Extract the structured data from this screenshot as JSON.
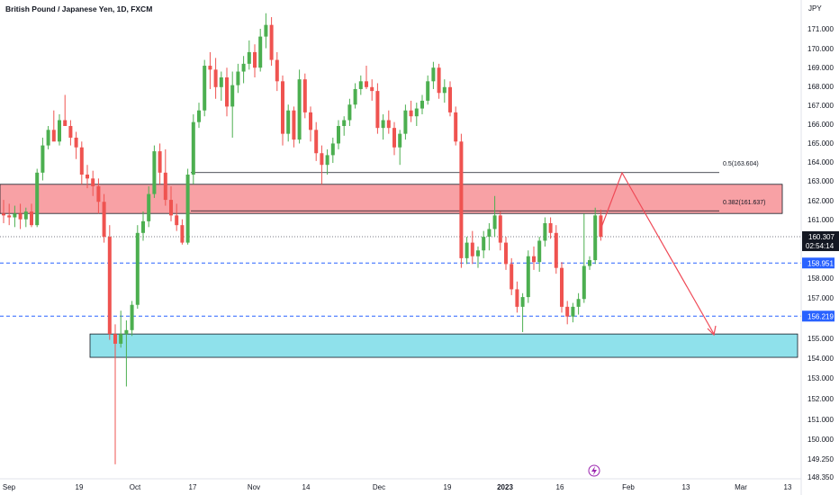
{
  "header": {
    "symbol_title": "British Pound / Japanese Yen, 1D, FXCM",
    "currency": "JPY"
  },
  "colors": {
    "up_candle": "#4caf50",
    "down_candle": "#ef5350",
    "resistance_zone": "#f8a1a5",
    "support_zone": "#8fe1eb",
    "dashed_line": "#2962ff",
    "arrow": "#ef4a57",
    "current_price_badge": "#131722",
    "level_badge": "#2962ff",
    "lightning_icon": "#9c27b0"
  },
  "price_scale": {
    "ticks": [
      "171.000",
      "170.000",
      "169.000",
      "168.000",
      "167.000",
      "166.000",
      "165.000",
      "164.000",
      "163.000",
      "162.000",
      "161.000",
      "158.000",
      "157.000",
      "155.000",
      "154.000",
      "153.000",
      "152.000",
      "151.000",
      "150.000",
      "149.250",
      "148.350"
    ],
    "current_price": "160.307",
    "countdown": "02:54:14",
    "level_1": "158.951",
    "level_2": "156.219"
  },
  "time_axis": {
    "labels": [
      "Sep",
      "19",
      "Oct",
      "17",
      "Nov",
      "14",
      "Dec",
      "19",
      "2023",
      "16",
      "Feb",
      "13",
      "Mar",
      "13"
    ]
  },
  "annotations": {
    "fib_050": "0.5(163.604)",
    "fib_0382": "0.382(161.637)",
    "lightning_icon": "lightning-icon"
  },
  "chart_data": {
    "type": "candlestick",
    "title": "British Pound / Japanese Yen, 1D, FXCM",
    "y_unit": "JPY",
    "ylim": [
      148.35,
      172.0
    ],
    "grid": false,
    "zones": [
      {
        "name": "resistance",
        "from": 161.5,
        "to": 163.0
      },
      {
        "name": "support",
        "from": 154.1,
        "to": 155.3
      }
    ],
    "horizontal_levels": [
      {
        "label": "0.5(163.604)",
        "value": 163.604
      },
      {
        "label": "0.382(161.637)",
        "value": 161.637
      },
      {
        "label": "158.951",
        "value": 158.951,
        "style": "dashed"
      },
      {
        "label": "156.219",
        "value": 156.219,
        "style": "dashed"
      },
      {
        "label": "160.307",
        "value": 160.307,
        "style": "dotted"
      }
    ],
    "projection": [
      {
        "date": "2023-01-24",
        "price": 160.3
      },
      {
        "date": "2023-01-28",
        "price": 163.4
      },
      {
        "date": "2023-02-23",
        "price": 155.0
      }
    ],
    "candles": [
      {
        "o": 161.5,
        "h": 162.2,
        "l": 161.0,
        "c": 161.4
      },
      {
        "o": 161.4,
        "h": 162.0,
        "l": 160.9,
        "c": 161.3
      },
      {
        "o": 161.3,
        "h": 161.9,
        "l": 160.8,
        "c": 161.5
      },
      {
        "o": 161.5,
        "h": 162.0,
        "l": 160.7,
        "c": 161.2
      },
      {
        "o": 161.2,
        "h": 161.8,
        "l": 160.8,
        "c": 161.6
      },
      {
        "o": 161.6,
        "h": 162.0,
        "l": 160.8,
        "c": 160.9
      },
      {
        "o": 160.9,
        "h": 163.8,
        "l": 160.8,
        "c": 163.6
      },
      {
        "o": 163.6,
        "h": 165.4,
        "l": 163.2,
        "c": 165.0
      },
      {
        "o": 165.0,
        "h": 166.0,
        "l": 164.8,
        "c": 165.8
      },
      {
        "o": 165.8,
        "h": 166.8,
        "l": 165.4,
        "c": 165.2
      },
      {
        "o": 165.2,
        "h": 166.6,
        "l": 165.0,
        "c": 166.3
      },
      {
        "o": 166.3,
        "h": 167.6,
        "l": 166.0,
        "c": 166.0
      },
      {
        "o": 166.0,
        "h": 166.3,
        "l": 165.0,
        "c": 165.4
      },
      {
        "o": 165.4,
        "h": 165.7,
        "l": 164.3,
        "c": 164.9
      },
      {
        "o": 164.9,
        "h": 165.2,
        "l": 163.0,
        "c": 163.5
      },
      {
        "o": 163.5,
        "h": 164.0,
        "l": 162.8,
        "c": 163.3
      },
      {
        "o": 163.3,
        "h": 163.7,
        "l": 162.4,
        "c": 162.9
      },
      {
        "o": 162.9,
        "h": 163.3,
        "l": 161.5,
        "c": 162.1
      },
      {
        "o": 162.1,
        "h": 162.5,
        "l": 160.0,
        "c": 160.3
      },
      {
        "o": 160.3,
        "h": 160.9,
        "l": 155.0,
        "c": 155.3
      },
      {
        "o": 155.3,
        "h": 155.8,
        "l": 148.6,
        "c": 154.8
      },
      {
        "o": 154.8,
        "h": 156.5,
        "l": 154.6,
        "c": 155.3
      },
      {
        "o": 155.3,
        "h": 156.0,
        "l": 152.6,
        "c": 155.5
      },
      {
        "o": 155.5,
        "h": 157.0,
        "l": 155.2,
        "c": 156.8
      },
      {
        "o": 156.8,
        "h": 160.9,
        "l": 156.6,
        "c": 160.5
      },
      {
        "o": 160.5,
        "h": 161.6,
        "l": 160.1,
        "c": 161.1
      },
      {
        "o": 161.1,
        "h": 162.9,
        "l": 160.8,
        "c": 162.5
      },
      {
        "o": 162.5,
        "h": 165.0,
        "l": 162.3,
        "c": 164.7
      },
      {
        "o": 164.7,
        "h": 165.1,
        "l": 163.0,
        "c": 163.6
      },
      {
        "o": 163.6,
        "h": 164.8,
        "l": 161.9,
        "c": 162.2
      },
      {
        "o": 162.2,
        "h": 162.9,
        "l": 161.1,
        "c": 161.4
      },
      {
        "o": 161.4,
        "h": 162.0,
        "l": 160.6,
        "c": 160.9
      },
      {
        "o": 160.9,
        "h": 161.2,
        "l": 159.9,
        "c": 160.0
      },
      {
        "o": 160.0,
        "h": 163.8,
        "l": 159.9,
        "c": 163.5
      },
      {
        "o": 163.5,
        "h": 166.6,
        "l": 163.0,
        "c": 166.2
      },
      {
        "o": 166.2,
        "h": 167.2,
        "l": 165.9,
        "c": 166.8
      },
      {
        "o": 166.8,
        "h": 169.4,
        "l": 166.5,
        "c": 169.1
      },
      {
        "o": 169.1,
        "h": 169.8,
        "l": 167.9,
        "c": 168.9
      },
      {
        "o": 168.9,
        "h": 169.5,
        "l": 167.4,
        "c": 168.0
      },
      {
        "o": 168.0,
        "h": 168.8,
        "l": 167.3,
        "c": 168.5
      },
      {
        "o": 168.5,
        "h": 169.0,
        "l": 166.5,
        "c": 167.0
      },
      {
        "o": 167.0,
        "h": 168.8,
        "l": 165.4,
        "c": 168.1
      },
      {
        "o": 168.1,
        "h": 169.2,
        "l": 167.7,
        "c": 168.8
      },
      {
        "o": 168.8,
        "h": 169.6,
        "l": 168.2,
        "c": 169.2
      },
      {
        "o": 169.2,
        "h": 170.4,
        "l": 168.9,
        "c": 169.8
      },
      {
        "o": 169.8,
        "h": 170.2,
        "l": 168.5,
        "c": 169.0
      },
      {
        "o": 169.0,
        "h": 171.0,
        "l": 168.8,
        "c": 170.6
      },
      {
        "o": 170.6,
        "h": 171.8,
        "l": 170.0,
        "c": 171.2
      },
      {
        "o": 171.2,
        "h": 171.6,
        "l": 169.1,
        "c": 169.4
      },
      {
        "o": 169.4,
        "h": 169.8,
        "l": 167.8,
        "c": 168.3
      },
      {
        "o": 168.3,
        "h": 168.6,
        "l": 165.0,
        "c": 165.6
      },
      {
        "o": 165.6,
        "h": 167.1,
        "l": 165.2,
        "c": 166.8
      },
      {
        "o": 166.8,
        "h": 167.0,
        "l": 164.9,
        "c": 165.3
      },
      {
        "o": 165.3,
        "h": 168.9,
        "l": 165.1,
        "c": 168.4
      },
      {
        "o": 168.4,
        "h": 168.7,
        "l": 166.4,
        "c": 166.7
      },
      {
        "o": 166.7,
        "h": 167.0,
        "l": 165.2,
        "c": 165.8
      },
      {
        "o": 165.8,
        "h": 166.2,
        "l": 164.2,
        "c": 164.6
      },
      {
        "o": 164.6,
        "h": 165.0,
        "l": 163.0,
        "c": 164.0
      },
      {
        "o": 164.0,
        "h": 164.8,
        "l": 163.5,
        "c": 164.5
      },
      {
        "o": 164.5,
        "h": 165.4,
        "l": 164.1,
        "c": 165.1
      },
      {
        "o": 165.1,
        "h": 166.3,
        "l": 164.8,
        "c": 166.0
      },
      {
        "o": 166.0,
        "h": 166.5,
        "l": 165.5,
        "c": 166.3
      },
      {
        "o": 166.3,
        "h": 167.4,
        "l": 166.0,
        "c": 167.1
      },
      {
        "o": 167.1,
        "h": 168.2,
        "l": 166.9,
        "c": 167.9
      },
      {
        "o": 167.9,
        "h": 168.6,
        "l": 167.6,
        "c": 168.3
      },
      {
        "o": 168.3,
        "h": 169.1,
        "l": 167.9,
        "c": 168.0
      },
      {
        "o": 168.0,
        "h": 168.4,
        "l": 167.3,
        "c": 167.8
      },
      {
        "o": 167.8,
        "h": 168.2,
        "l": 165.6,
        "c": 165.9
      },
      {
        "o": 165.9,
        "h": 166.6,
        "l": 165.3,
        "c": 166.3
      },
      {
        "o": 166.3,
        "h": 166.8,
        "l": 165.6,
        "c": 165.9
      },
      {
        "o": 165.9,
        "h": 166.2,
        "l": 164.5,
        "c": 164.9
      },
      {
        "o": 164.9,
        "h": 165.8,
        "l": 164.0,
        "c": 165.6
      },
      {
        "o": 165.6,
        "h": 167.1,
        "l": 165.3,
        "c": 166.8
      },
      {
        "o": 166.8,
        "h": 167.3,
        "l": 166.2,
        "c": 166.5
      },
      {
        "o": 166.5,
        "h": 167.2,
        "l": 166.0,
        "c": 166.9
      },
      {
        "o": 166.9,
        "h": 167.6,
        "l": 166.6,
        "c": 167.3
      },
      {
        "o": 167.3,
        "h": 168.6,
        "l": 167.1,
        "c": 168.3
      },
      {
        "o": 168.3,
        "h": 169.3,
        "l": 167.9,
        "c": 169.0
      },
      {
        "o": 169.0,
        "h": 169.2,
        "l": 167.4,
        "c": 167.7
      },
      {
        "o": 167.7,
        "h": 168.4,
        "l": 167.2,
        "c": 168.0
      },
      {
        "o": 168.0,
        "h": 168.3,
        "l": 166.5,
        "c": 166.7
      },
      {
        "o": 166.7,
        "h": 167.0,
        "l": 165.0,
        "c": 165.2
      },
      {
        "o": 165.2,
        "h": 165.6,
        "l": 158.7,
        "c": 159.2
      },
      {
        "o": 159.2,
        "h": 160.3,
        "l": 158.9,
        "c": 160.0
      },
      {
        "o": 160.0,
        "h": 160.6,
        "l": 158.9,
        "c": 159.3
      },
      {
        "o": 159.3,
        "h": 159.8,
        "l": 158.7,
        "c": 159.6
      },
      {
        "o": 159.6,
        "h": 160.6,
        "l": 159.2,
        "c": 160.3
      },
      {
        "o": 160.3,
        "h": 161.0,
        "l": 159.6,
        "c": 160.7
      },
      {
        "o": 160.7,
        "h": 162.4,
        "l": 160.3,
        "c": 161.4
      },
      {
        "o": 161.4,
        "h": 161.6,
        "l": 159.6,
        "c": 160.0
      },
      {
        "o": 160.0,
        "h": 160.3,
        "l": 158.6,
        "c": 158.9
      },
      {
        "o": 158.9,
        "h": 159.2,
        "l": 157.3,
        "c": 157.6
      },
      {
        "o": 157.6,
        "h": 158.0,
        "l": 156.4,
        "c": 156.7
      },
      {
        "o": 156.7,
        "h": 157.4,
        "l": 155.4,
        "c": 157.2
      },
      {
        "o": 157.2,
        "h": 159.6,
        "l": 156.9,
        "c": 159.3
      },
      {
        "o": 159.3,
        "h": 159.8,
        "l": 158.6,
        "c": 159.0
      },
      {
        "o": 159.0,
        "h": 160.3,
        "l": 158.5,
        "c": 160.1
      },
      {
        "o": 160.1,
        "h": 161.3,
        "l": 159.8,
        "c": 161.0
      },
      {
        "o": 161.0,
        "h": 161.3,
        "l": 160.2,
        "c": 160.5
      },
      {
        "o": 160.5,
        "h": 160.9,
        "l": 158.4,
        "c": 158.7
      },
      {
        "o": 158.7,
        "h": 159.0,
        "l": 156.4,
        "c": 156.7
      },
      {
        "o": 156.7,
        "h": 157.0,
        "l": 155.8,
        "c": 156.2
      },
      {
        "o": 156.2,
        "h": 156.9,
        "l": 155.9,
        "c": 156.7
      },
      {
        "o": 156.7,
        "h": 157.4,
        "l": 156.3,
        "c": 157.1
      },
      {
        "o": 157.1,
        "h": 161.5,
        "l": 156.9,
        "c": 158.8
      },
      {
        "o": 158.8,
        "h": 159.3,
        "l": 158.6,
        "c": 159.1
      },
      {
        "o": 159.1,
        "h": 161.8,
        "l": 158.9,
        "c": 161.4
      },
      {
        "o": 161.4,
        "h": 161.7,
        "l": 160.1,
        "c": 160.3
      }
    ]
  }
}
